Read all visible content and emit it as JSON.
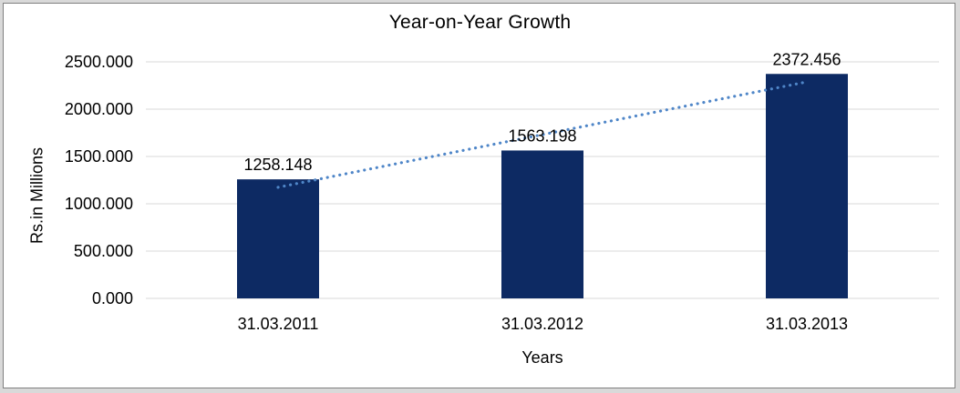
{
  "chart_data": {
    "type": "bar",
    "title": "Year-on-Year Growth",
    "categories": [
      "31.03.2011",
      "31.03.2012",
      "31.03.2013"
    ],
    "values": [
      1258.148,
      1563.198,
      2372.456
    ],
    "data_labels": [
      "1258.148",
      "1563.198",
      "2372.456"
    ],
    "xlabel": "Years",
    "ylabel": "Rs.in Millions",
    "ylim": [
      0,
      2500
    ],
    "ytick_step": 500,
    "yticks": [
      "0.000",
      "500.000",
      "1000.000",
      "1500.000",
      "2000.000",
      "2500.000"
    ],
    "grid": true,
    "legend": false,
    "trendline": {
      "type": "linear",
      "style": "dotted"
    },
    "colors": {
      "bar": "#0d2a63",
      "trendline": "#4f86c8",
      "gridline": "#d9d9d9",
      "text": "#000000",
      "frame_border": "#808080",
      "page_background": "#d9d9d9"
    }
  }
}
